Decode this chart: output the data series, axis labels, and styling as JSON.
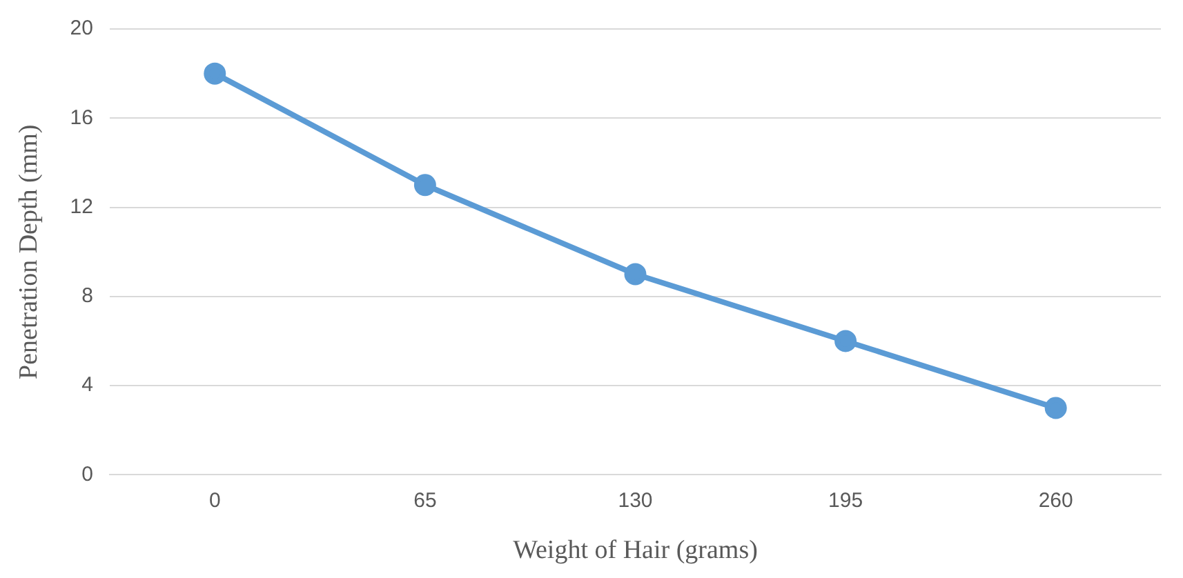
{
  "chart_data": {
    "type": "line",
    "xlabel": "Weight of Hair (grams)",
    "ylabel": "Penetration Depth (mm)",
    "categories": [
      "0",
      "65",
      "130",
      "195",
      "260"
    ],
    "series": [
      {
        "color": "#5b9bd5",
        "values": [
          18,
          13,
          9,
          6,
          3
        ]
      }
    ],
    "ylim": [
      0,
      20
    ],
    "yticks": [
      0,
      4,
      8,
      12,
      16,
      20
    ],
    "grid": "y",
    "marker": "circle",
    "line_style": "solid",
    "legend": false
  }
}
